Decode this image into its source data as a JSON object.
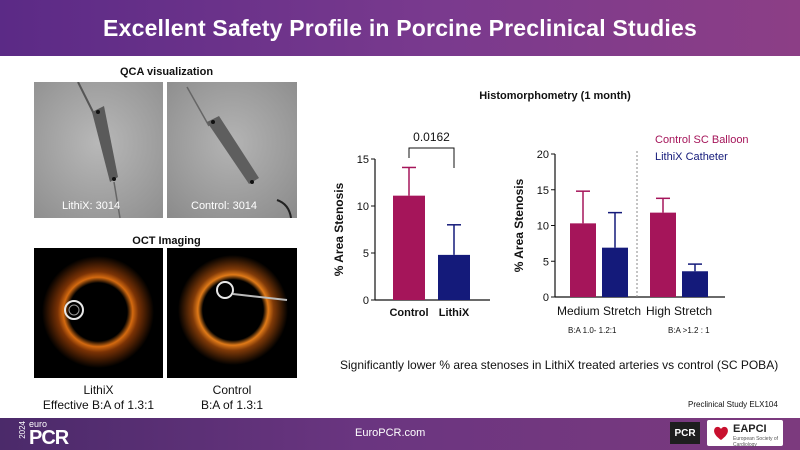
{
  "header": {
    "title": "Excellent Safety Profile in Porcine Preclinical Studies"
  },
  "left": {
    "qca_caption": "QCA visualization",
    "qca_left_label": "LithiX: 3014",
    "qca_right_label": "Control: 3014",
    "oct_caption": "OCT Imaging",
    "oct_left_sub": [
      "LithiX",
      "Effective B:A of 1.3:1"
    ],
    "oct_right_sub": [
      "Control",
      "B:A of 1.3:1"
    ]
  },
  "chart_title": "Histomorphometry (1 month)",
  "chart_data": [
    {
      "type": "bar",
      "categories": [
        "Control",
        "LithiX"
      ],
      "values": [
        11.1,
        4.8
      ],
      "errors": [
        3.0,
        3.2
      ],
      "ylabel": "% Area Stenosis",
      "ylim": [
        0,
        15
      ],
      "yticks": [
        0,
        5,
        10,
        15
      ],
      "annotation": "0.0162",
      "colors": [
        "#a5155a",
        "#141a7a"
      ]
    },
    {
      "type": "bar",
      "categories": [
        "Medium Stretch",
        "High Stretch"
      ],
      "sublabels": [
        "B:A 1.0- 1.2:1",
        "B:A >1.2 : 1"
      ],
      "series": [
        {
          "name": "Control SC Balloon",
          "values": [
            10.3,
            11.8
          ],
          "errors": [
            4.5,
            2.0
          ],
          "color": "#a5155a"
        },
        {
          "name": "LithiX Catheter",
          "values": [
            6.9,
            3.6
          ],
          "errors": [
            4.9,
            1.0
          ],
          "color": "#141a7a"
        }
      ],
      "ylabel": "% Area Stenosis",
      "ylim": [
        0,
        20
      ],
      "yticks": [
        0,
        5,
        10,
        15,
        20
      ]
    }
  ],
  "footnote": "Significantly lower % area stenoses in LithiX treated arteries vs control (SC POBA)",
  "study_label": "Preclinical Study ELX104",
  "footer": {
    "url": "EuroPCR.com",
    "year": "2024",
    "brand_small": "euro",
    "brand_big": "PCR",
    "pcr_badge": "PCR",
    "eapci": "EAPCI",
    "eapci_sub": "European Society of Cardiology"
  }
}
